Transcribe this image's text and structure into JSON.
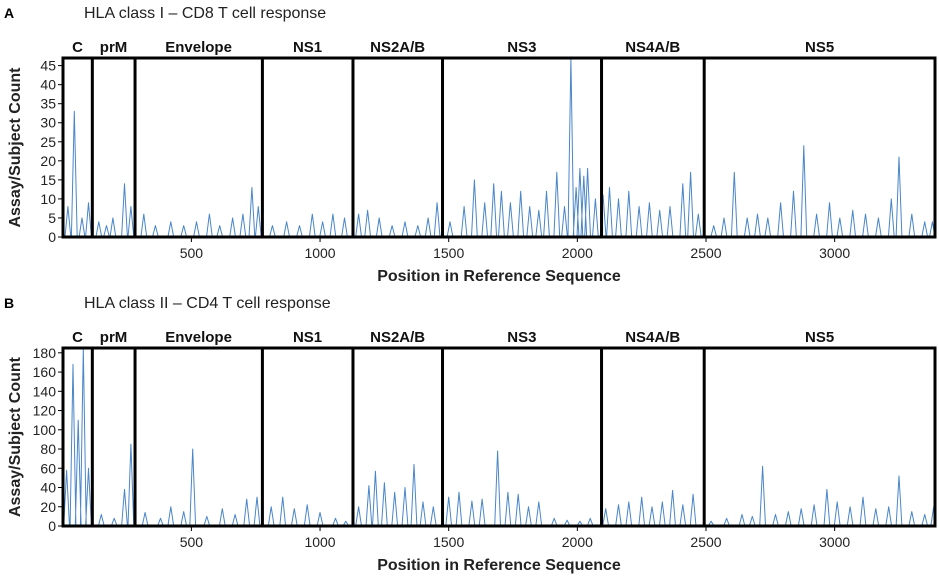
{
  "chart_data": [
    {
      "type": "line",
      "panel": "A",
      "title": "HLA class I – CD8 T cell response",
      "xlabel": "Position in Reference Sequence",
      "ylabel": "Assay/Subject Count",
      "xlim": [
        1,
        3390
      ],
      "ylim": [
        0,
        47
      ],
      "xticks": [
        500,
        1000,
        1500,
        2000,
        2500,
        3000
      ],
      "yticks": [
        0,
        5,
        10,
        15,
        20,
        25,
        30,
        35,
        40,
        45
      ],
      "regions": [
        {
          "name": "C",
          "start": 1,
          "end": 114
        },
        {
          "name": "prM",
          "start": 115,
          "end": 280
        },
        {
          "name": "Envelope",
          "start": 281,
          "end": 775
        },
        {
          "name": "NS1",
          "start": 776,
          "end": 1127
        },
        {
          "name": "NS2A/B",
          "start": 1128,
          "end": 1475
        },
        {
          "name": "NS3",
          "start": 1476,
          "end": 2093
        },
        {
          "name": "NS4A/B",
          "start": 2094,
          "end": 2492
        },
        {
          "name": "NS5",
          "start": 2493,
          "end": 3390
        }
      ],
      "peaks": [
        {
          "x": 20,
          "y": 8
        },
        {
          "x": 45,
          "y": 33
        },
        {
          "x": 75,
          "y": 5
        },
        {
          "x": 100,
          "y": 9
        },
        {
          "x": 140,
          "y": 4
        },
        {
          "x": 170,
          "y": 3
        },
        {
          "x": 195,
          "y": 5
        },
        {
          "x": 240,
          "y": 14
        },
        {
          "x": 265,
          "y": 8
        },
        {
          "x": 315,
          "y": 6
        },
        {
          "x": 360,
          "y": 3
        },
        {
          "x": 420,
          "y": 4
        },
        {
          "x": 470,
          "y": 3
        },
        {
          "x": 520,
          "y": 4
        },
        {
          "x": 570,
          "y": 6
        },
        {
          "x": 610,
          "y": 3
        },
        {
          "x": 660,
          "y": 5
        },
        {
          "x": 700,
          "y": 6
        },
        {
          "x": 735,
          "y": 13
        },
        {
          "x": 760,
          "y": 8
        },
        {
          "x": 815,
          "y": 3
        },
        {
          "x": 870,
          "y": 4
        },
        {
          "x": 920,
          "y": 3
        },
        {
          "x": 970,
          "y": 6
        },
        {
          "x": 1010,
          "y": 4
        },
        {
          "x": 1050,
          "y": 6
        },
        {
          "x": 1095,
          "y": 5
        },
        {
          "x": 1150,
          "y": 6
        },
        {
          "x": 1185,
          "y": 7
        },
        {
          "x": 1230,
          "y": 5
        },
        {
          "x": 1280,
          "y": 3
        },
        {
          "x": 1330,
          "y": 4
        },
        {
          "x": 1380,
          "y": 3
        },
        {
          "x": 1420,
          "y": 5
        },
        {
          "x": 1455,
          "y": 9
        },
        {
          "x": 1505,
          "y": 4
        },
        {
          "x": 1560,
          "y": 8
        },
        {
          "x": 1600,
          "y": 15
        },
        {
          "x": 1640,
          "y": 9
        },
        {
          "x": 1675,
          "y": 14
        },
        {
          "x": 1705,
          "y": 12
        },
        {
          "x": 1740,
          "y": 9
        },
        {
          "x": 1780,
          "y": 12
        },
        {
          "x": 1815,
          "y": 8
        },
        {
          "x": 1850,
          "y": 7
        },
        {
          "x": 1880,
          "y": 12
        },
        {
          "x": 1920,
          "y": 17
        },
        {
          "x": 1950,
          "y": 8
        },
        {
          "x": 1975,
          "y": 47
        },
        {
          "x": 1995,
          "y": 13
        },
        {
          "x": 2010,
          "y": 18
        },
        {
          "x": 2025,
          "y": 16
        },
        {
          "x": 2040,
          "y": 18
        },
        {
          "x": 2070,
          "y": 10
        },
        {
          "x": 2100,
          "y": 11
        },
        {
          "x": 2125,
          "y": 13
        },
        {
          "x": 2160,
          "y": 10
        },
        {
          "x": 2200,
          "y": 12
        },
        {
          "x": 2240,
          "y": 8
        },
        {
          "x": 2280,
          "y": 9
        },
        {
          "x": 2320,
          "y": 7
        },
        {
          "x": 2360,
          "y": 8
        },
        {
          "x": 2410,
          "y": 14
        },
        {
          "x": 2440,
          "y": 17
        },
        {
          "x": 2470,
          "y": 6
        },
        {
          "x": 2530,
          "y": 3
        },
        {
          "x": 2570,
          "y": 5
        },
        {
          "x": 2610,
          "y": 17
        },
        {
          "x": 2660,
          "y": 5
        },
        {
          "x": 2700,
          "y": 6
        },
        {
          "x": 2740,
          "y": 5
        },
        {
          "x": 2790,
          "y": 9
        },
        {
          "x": 2840,
          "y": 12
        },
        {
          "x": 2880,
          "y": 24
        },
        {
          "x": 2930,
          "y": 6
        },
        {
          "x": 2980,
          "y": 9
        },
        {
          "x": 3020,
          "y": 5
        },
        {
          "x": 3070,
          "y": 7
        },
        {
          "x": 3120,
          "y": 6
        },
        {
          "x": 3170,
          "y": 5
        },
        {
          "x": 3220,
          "y": 10
        },
        {
          "x": 3250,
          "y": 21
        },
        {
          "x": 3300,
          "y": 6
        },
        {
          "x": 3350,
          "y": 4
        },
        {
          "x": 3380,
          "y": 4
        }
      ]
    },
    {
      "type": "line",
      "panel": "B",
      "title": "HLA class II – CD4 T cell response",
      "xlabel": "Position in Reference Sequence",
      "ylabel": "Assay/Subject Count",
      "xlim": [
        1,
        3390
      ],
      "ylim": [
        0,
        185
      ],
      "xticks": [
        500,
        1000,
        1500,
        2000,
        2500,
        3000
      ],
      "yticks": [
        0,
        20,
        40,
        60,
        80,
        100,
        120,
        140,
        160,
        180
      ],
      "regions": [
        {
          "name": "C",
          "start": 1,
          "end": 114
        },
        {
          "name": "prM",
          "start": 115,
          "end": 280
        },
        {
          "name": "Envelope",
          "start": 281,
          "end": 775
        },
        {
          "name": "NS1",
          "start": 776,
          "end": 1127
        },
        {
          "name": "NS2A/B",
          "start": 1128,
          "end": 1475
        },
        {
          "name": "NS3",
          "start": 1476,
          "end": 2093
        },
        {
          "name": "NS4A/B",
          "start": 2094,
          "end": 2492
        },
        {
          "name": "NS5",
          "start": 2493,
          "end": 3390
        }
      ],
      "peaks": [
        {
          "x": 15,
          "y": 58
        },
        {
          "x": 40,
          "y": 168
        },
        {
          "x": 60,
          "y": 110
        },
        {
          "x": 80,
          "y": 185
        },
        {
          "x": 100,
          "y": 60
        },
        {
          "x": 150,
          "y": 12
        },
        {
          "x": 200,
          "y": 8
        },
        {
          "x": 240,
          "y": 38
        },
        {
          "x": 265,
          "y": 85
        },
        {
          "x": 320,
          "y": 14
        },
        {
          "x": 380,
          "y": 8
        },
        {
          "x": 420,
          "y": 20
        },
        {
          "x": 470,
          "y": 15
        },
        {
          "x": 505,
          "y": 80
        },
        {
          "x": 560,
          "y": 10
        },
        {
          "x": 620,
          "y": 18
        },
        {
          "x": 670,
          "y": 12
        },
        {
          "x": 715,
          "y": 28
        },
        {
          "x": 755,
          "y": 30
        },
        {
          "x": 810,
          "y": 20
        },
        {
          "x": 855,
          "y": 30
        },
        {
          "x": 900,
          "y": 18
        },
        {
          "x": 950,
          "y": 22
        },
        {
          "x": 1000,
          "y": 14
        },
        {
          "x": 1060,
          "y": 8
        },
        {
          "x": 1100,
          "y": 5
        },
        {
          "x": 1150,
          "y": 20
        },
        {
          "x": 1190,
          "y": 42
        },
        {
          "x": 1215,
          "y": 57
        },
        {
          "x": 1250,
          "y": 45
        },
        {
          "x": 1290,
          "y": 35
        },
        {
          "x": 1330,
          "y": 40
        },
        {
          "x": 1365,
          "y": 64
        },
        {
          "x": 1400,
          "y": 25
        },
        {
          "x": 1440,
          "y": 20
        },
        {
          "x": 1500,
          "y": 30
        },
        {
          "x": 1540,
          "y": 35
        },
        {
          "x": 1590,
          "y": 26
        },
        {
          "x": 1630,
          "y": 28
        },
        {
          "x": 1690,
          "y": 78
        },
        {
          "x": 1730,
          "y": 35
        },
        {
          "x": 1770,
          "y": 33
        },
        {
          "x": 1810,
          "y": 20
        },
        {
          "x": 1850,
          "y": 25
        },
        {
          "x": 1910,
          "y": 8
        },
        {
          "x": 1960,
          "y": 6
        },
        {
          "x": 2010,
          "y": 5
        },
        {
          "x": 2050,
          "y": 8
        },
        {
          "x": 2110,
          "y": 18
        },
        {
          "x": 2160,
          "y": 22
        },
        {
          "x": 2200,
          "y": 25
        },
        {
          "x": 2250,
          "y": 30
        },
        {
          "x": 2290,
          "y": 20
        },
        {
          "x": 2330,
          "y": 25
        },
        {
          "x": 2370,
          "y": 37
        },
        {
          "x": 2410,
          "y": 22
        },
        {
          "x": 2450,
          "y": 33
        },
        {
          "x": 2520,
          "y": 5
        },
        {
          "x": 2580,
          "y": 8
        },
        {
          "x": 2640,
          "y": 12
        },
        {
          "x": 2680,
          "y": 10
        },
        {
          "x": 2720,
          "y": 62
        },
        {
          "x": 2770,
          "y": 12
        },
        {
          "x": 2820,
          "y": 15
        },
        {
          "x": 2870,
          "y": 18
        },
        {
          "x": 2920,
          "y": 22
        },
        {
          "x": 2970,
          "y": 38
        },
        {
          "x": 3010,
          "y": 25
        },
        {
          "x": 3060,
          "y": 20
        },
        {
          "x": 3110,
          "y": 30
        },
        {
          "x": 3160,
          "y": 18
        },
        {
          "x": 3210,
          "y": 20
        },
        {
          "x": 3250,
          "y": 52
        },
        {
          "x": 3300,
          "y": 15
        },
        {
          "x": 3350,
          "y": 12
        },
        {
          "x": 3385,
          "y": 20
        }
      ]
    }
  ]
}
